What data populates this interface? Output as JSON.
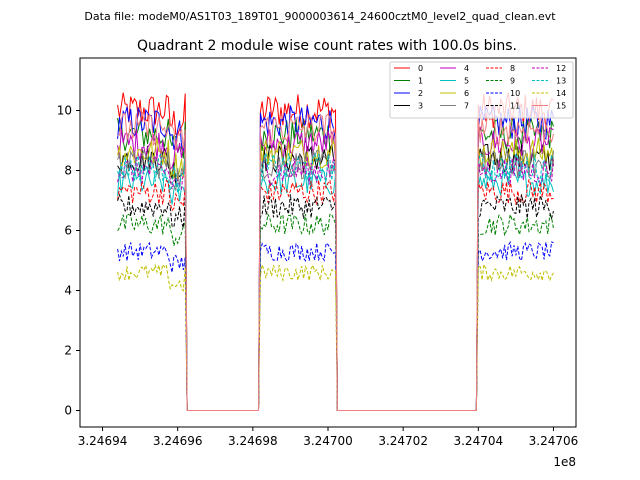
{
  "header": {
    "datafile": "Data file: modeM0/AS1T03_189T01_9000003614_24600cztM0_level2_quad_clean.evt"
  },
  "chart_data": {
    "type": "line",
    "title": "Quadrant 2 module wise count rates with 100.0s bins.",
    "xlabel": "",
    "ylabel": "",
    "x_offset_label": "1e8",
    "xlim": [
      3.246934,
      3.247066
    ],
    "ylim": [
      -0.55,
      11.75
    ],
    "x_ticks": [
      3.24694,
      3.24696,
      3.24698,
      3.247,
      3.24702,
      3.24704,
      3.24706
    ],
    "x_tick_labels": [
      "3.24694",
      "3.24696",
      "3.24698",
      "3.24700",
      "3.24702",
      "3.24704",
      "3.24706"
    ],
    "y_ticks": [
      0,
      2,
      4,
      6,
      8,
      10
    ],
    "y_tick_labels": [
      "0",
      "2",
      "4",
      "6",
      "8",
      "10"
    ],
    "grid": false,
    "legend_position": "top-right",
    "segments": [
      {
        "start": 3.246944,
        "end": 3.246962
      },
      {
        "start": 3.246982,
        "end": 3.247002
      },
      {
        "start": 3.24704,
        "end": 3.24706
      }
    ],
    "gaps": [
      {
        "start": 3.246963,
        "end": 3.246981
      },
      {
        "start": 3.2470015,
        "end": 3.2470035
      },
      {
        "start": 3.247021,
        "end": 3.247039
      }
    ],
    "series": [
      {
        "name": "0",
        "color": "#ff0000",
        "dash": false,
        "level": 10.0
      },
      {
        "name": "1",
        "color": "#008000",
        "dash": false,
        "level": 9.2
      },
      {
        "name": "2",
        "color": "#0000ff",
        "dash": false,
        "level": 9.6
      },
      {
        "name": "3",
        "color": "#000000",
        "dash": false,
        "level": 8.4
      },
      {
        "name": "4",
        "color": "#bf00bf",
        "dash": false,
        "level": 8.9
      },
      {
        "name": "5",
        "color": "#00bfbf",
        "dash": false,
        "level": 7.6
      },
      {
        "name": "6",
        "color": "#bfbf00",
        "dash": false,
        "level": 8.6
      },
      {
        "name": "7",
        "color": "#808080",
        "dash": false,
        "level": 8.2
      },
      {
        "name": "8",
        "color": "#ff0000",
        "dash": true,
        "level": 7.3
      },
      {
        "name": "9",
        "color": "#008000",
        "dash": true,
        "level": 6.2
      },
      {
        "name": "10",
        "color": "#0000ff",
        "dash": true,
        "level": 5.3
      },
      {
        "name": "11",
        "color": "#000000",
        "dash": true,
        "level": 6.8
      },
      {
        "name": "12",
        "color": "#bf00bf",
        "dash": true,
        "level": 8.0
      },
      {
        "name": "13",
        "color": "#00bfbf",
        "dash": true,
        "level": 8.1
      },
      {
        "name": "14",
        "color": "#bfbf00",
        "dash": true,
        "level": 4.6
      },
      {
        "name": "15",
        "color": "#f08080",
        "dash": false,
        "level": 9.4
      }
    ]
  }
}
